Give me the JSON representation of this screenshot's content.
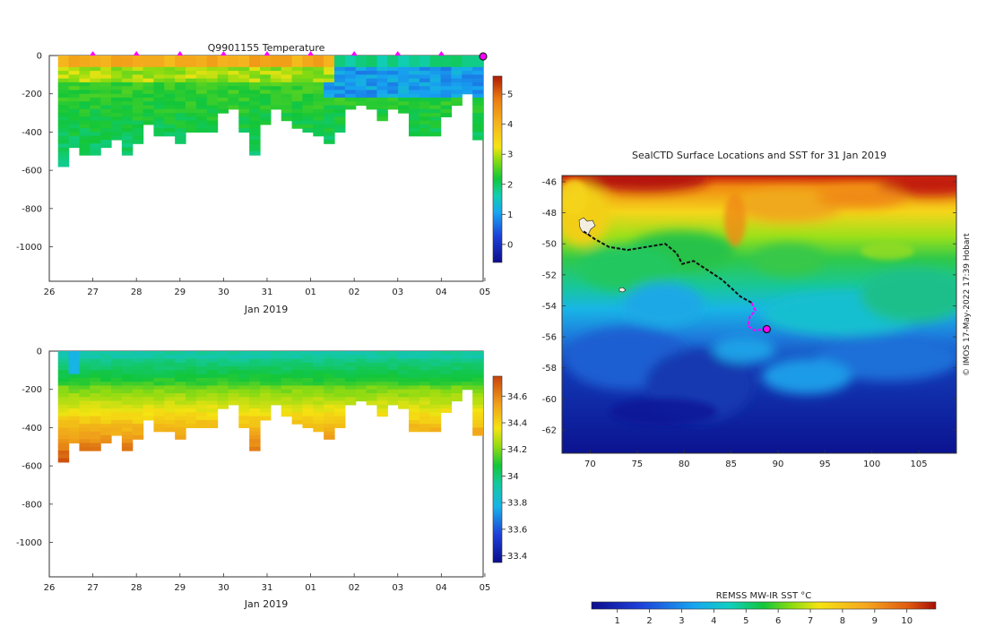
{
  "chart_data": [
    {
      "id": "temperature",
      "type": "heatmap",
      "title": "Q9901155  Temperature",
      "xlabel": "Jan 2019",
      "ylabel": "",
      "x_tick_labels": [
        "26",
        "27",
        "28",
        "29",
        "30",
        "31",
        "01",
        "02",
        "03",
        "04",
        "05"
      ],
      "y_tick_labels": [
        "0",
        "-200",
        "-400",
        "-600",
        "-800",
        "-1000"
      ],
      "y_tick_values": [
        0,
        -200,
        -400,
        -600,
        -800,
        -1000
      ],
      "ylim": [
        -1180,
        0
      ],
      "xlim_days": [
        0,
        9.96
      ],
      "colorbar": {
        "ticks": [
          0,
          1,
          2,
          3,
          4,
          5
        ],
        "min": -0.6,
        "max": 5.6
      },
      "profile_markers_days": [
        1,
        2,
        3,
        4,
        5,
        6,
        7,
        8,
        9
      ],
      "current_marker_day": 9.96,
      "profile_max_depths_m": [
        570,
        470,
        510,
        520,
        480,
        440,
        520,
        460,
        350,
        420,
        420,
        460,
        400,
        390,
        390,
        300,
        280,
        400,
        520,
        350,
        280,
        340,
        380,
        390,
        420,
        450,
        400,
        280,
        260,
        280,
        330,
        280,
        300,
        420,
        420,
        420,
        310,
        250,
        200,
        440
      ],
      "colors": {
        "profile_marker": "#ff00ff",
        "current_marker": "#ff00ff"
      }
    },
    {
      "id": "salinity",
      "type": "heatmap",
      "title": "",
      "xlabel": "Jan 2019",
      "ylabel": "",
      "x_tick_labels": [
        "26",
        "27",
        "28",
        "29",
        "30",
        "31",
        "01",
        "02",
        "03",
        "04",
        "05"
      ],
      "y_tick_labels": [
        "0",
        "-200",
        "-400",
        "-600",
        "-800",
        "-1000"
      ],
      "y_tick_values": [
        0,
        -200,
        -400,
        -600,
        -800,
        -1000
      ],
      "ylim": [
        -1180,
        0
      ],
      "xlim_days": [
        0,
        9.96
      ],
      "colorbar": {
        "ticks": [
          "33.4",
          "33.6",
          "33.8",
          "34",
          "34.2",
          "34.4",
          "34.6"
        ],
        "min": 33.35,
        "max": 34.75
      }
    },
    {
      "id": "sst_map",
      "type": "heatmap",
      "title": "SealCTD Surface Locations and SST for 31 Jan 2019",
      "xlabel": "",
      "ylabel": "",
      "x_tick_labels": [
        "70",
        "75",
        "80",
        "85",
        "90",
        "95",
        "100",
        "105"
      ],
      "x_tick_values": [
        70,
        75,
        80,
        85,
        90,
        95,
        100,
        105
      ],
      "y_tick_labels": [
        "-46",
        "-48",
        "-50",
        "-52",
        "-54",
        "-56",
        "-58",
        "-60",
        "-62"
      ],
      "y_tick_values": [
        -46,
        -48,
        -50,
        -52,
        -54,
        -56,
        -58,
        -60,
        -62
      ],
      "xlim": [
        67,
        109
      ],
      "ylim": [
        -63.5,
        -45.6
      ],
      "track_lon_lat": [
        [
          69.3,
          -49.2
        ],
        [
          70.5,
          -49.7
        ],
        [
          72,
          -50.2
        ],
        [
          74,
          -50.4
        ],
        [
          76,
          -50.2
        ],
        [
          78,
          -50.0
        ],
        [
          79.2,
          -50.6
        ],
        [
          79.8,
          -51.3
        ],
        [
          81,
          -51.1
        ],
        [
          82.5,
          -51.7
        ],
        [
          84,
          -52.3
        ],
        [
          85.3,
          -53.0
        ],
        [
          86,
          -53.4
        ],
        [
          87.2,
          -53.8
        ],
        [
          87.6,
          -54.3
        ],
        [
          87,
          -54.7
        ],
        [
          86.8,
          -55.3
        ],
        [
          87.6,
          -55.6
        ],
        [
          88.4,
          -55.5
        ],
        [
          88.8,
          -55.5
        ]
      ],
      "current_position": [
        88.8,
        -55.5
      ],
      "colorbar": {
        "label": "REMSS MW-IR SST °C",
        "ticks": [
          "1",
          "2",
          "3",
          "4",
          "5",
          "6",
          "7",
          "8",
          "9",
          "10"
        ],
        "min": 0.2,
        "max": 10.9
      },
      "credit": "© IMOS 17-May-2022 17:39 Hobart"
    }
  ]
}
